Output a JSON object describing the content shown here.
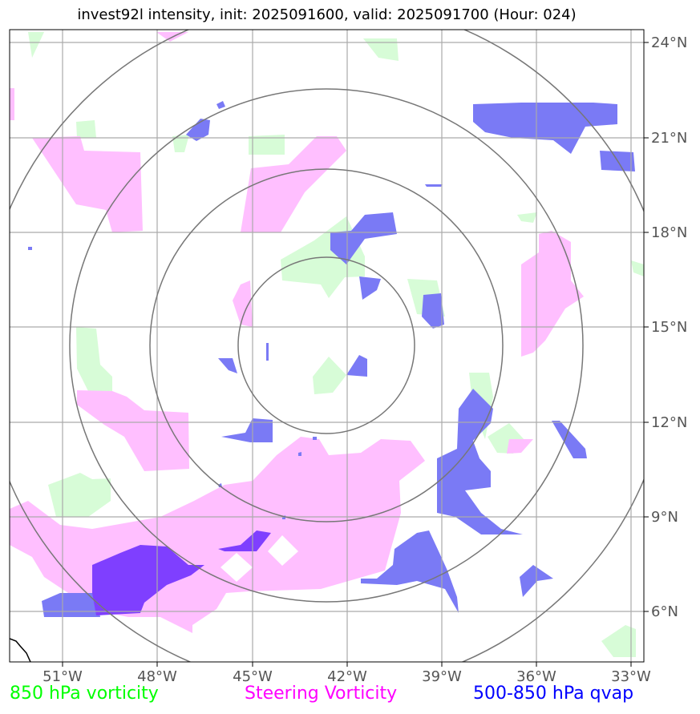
{
  "title": "invest92l intensity, init: 2025091600, valid: 2025091700 (Hour: 024)",
  "lon_labels": [
    "51°W",
    "48°W",
    "45°W",
    "42°W",
    "39°W",
    "36°W",
    "33°W"
  ],
  "lat_labels": [
    "24°N",
    "21°N",
    "18°N",
    "15°N",
    "12°N",
    "9°N",
    "6°N"
  ],
  "legend": [
    {
      "label": "850 hPa vorticity",
      "color": "#00ff00"
    },
    {
      "label": "Steering Vorticity",
      "color": "#ff00ff"
    },
    {
      "label": "500-850 hPa qvap",
      "color": "#0000ff"
    }
  ],
  "colors": {
    "vorticity_850": "#d7fcd7",
    "steering_vorticity": "#ffbfff",
    "qvap": "#7a7af5",
    "overlap": "#7f3fff",
    "grid": "#aaaaaa",
    "range_rings": "#777777"
  }
}
